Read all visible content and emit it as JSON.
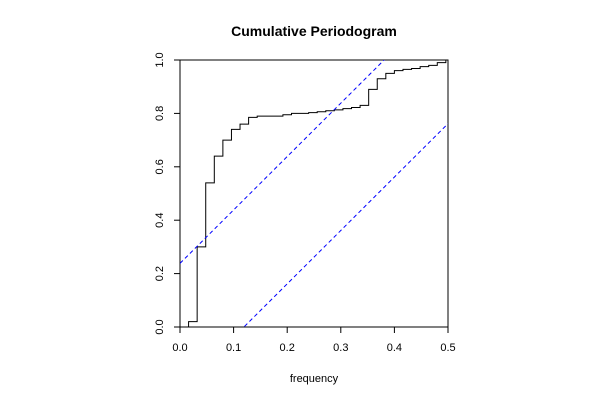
{
  "chart_data": {
    "type": "line",
    "title": "Cumulative Periodogram",
    "xlabel": "frequency",
    "ylabel": "",
    "xlim": [
      0,
      0.5
    ],
    "ylim": [
      0,
      1
    ],
    "x_ticks": [
      0.0,
      0.1,
      0.2,
      0.3,
      0.4,
      0.5
    ],
    "x_tick_labels": [
      "0.0",
      "0.1",
      "0.2",
      "0.3",
      "0.4",
      "0.5"
    ],
    "y_ticks": [
      0.0,
      0.2,
      0.4,
      0.6,
      0.8,
      1.0
    ],
    "y_tick_labels": [
      "0.0",
      "0.2",
      "0.4",
      "0.6",
      "0.8",
      "1.0"
    ],
    "grid": false,
    "legend": "none",
    "series": [
      {
        "kind": "step",
        "color": "#000000",
        "x": [
          0.0,
          0.016,
          0.032,
          0.048,
          0.064,
          0.08,
          0.096,
          0.112,
          0.128,
          0.144,
          0.16,
          0.176,
          0.192,
          0.208,
          0.224,
          0.24,
          0.256,
          0.272,
          0.288,
          0.304,
          0.32,
          0.336,
          0.352,
          0.368,
          0.384,
          0.4,
          0.416,
          0.432,
          0.448,
          0.464,
          0.48,
          0.496
        ],
        "y": [
          0.0,
          0.02,
          0.3,
          0.54,
          0.64,
          0.7,
          0.74,
          0.76,
          0.785,
          0.79,
          0.79,
          0.79,
          0.795,
          0.8,
          0.8,
          0.803,
          0.806,
          0.81,
          0.813,
          0.818,
          0.822,
          0.83,
          0.89,
          0.93,
          0.95,
          0.96,
          0.965,
          0.968,
          0.975,
          0.98,
          0.99,
          1.0
        ]
      },
      {
        "kind": "reference-line",
        "color": "#0000ff",
        "dash": "dashed",
        "intercept": 0.2384,
        "slope": 2.0
      },
      {
        "kind": "reference-line",
        "color": "#0000ff",
        "dash": "dashed",
        "intercept": -0.2384,
        "slope": 2.0
      }
    ]
  }
}
